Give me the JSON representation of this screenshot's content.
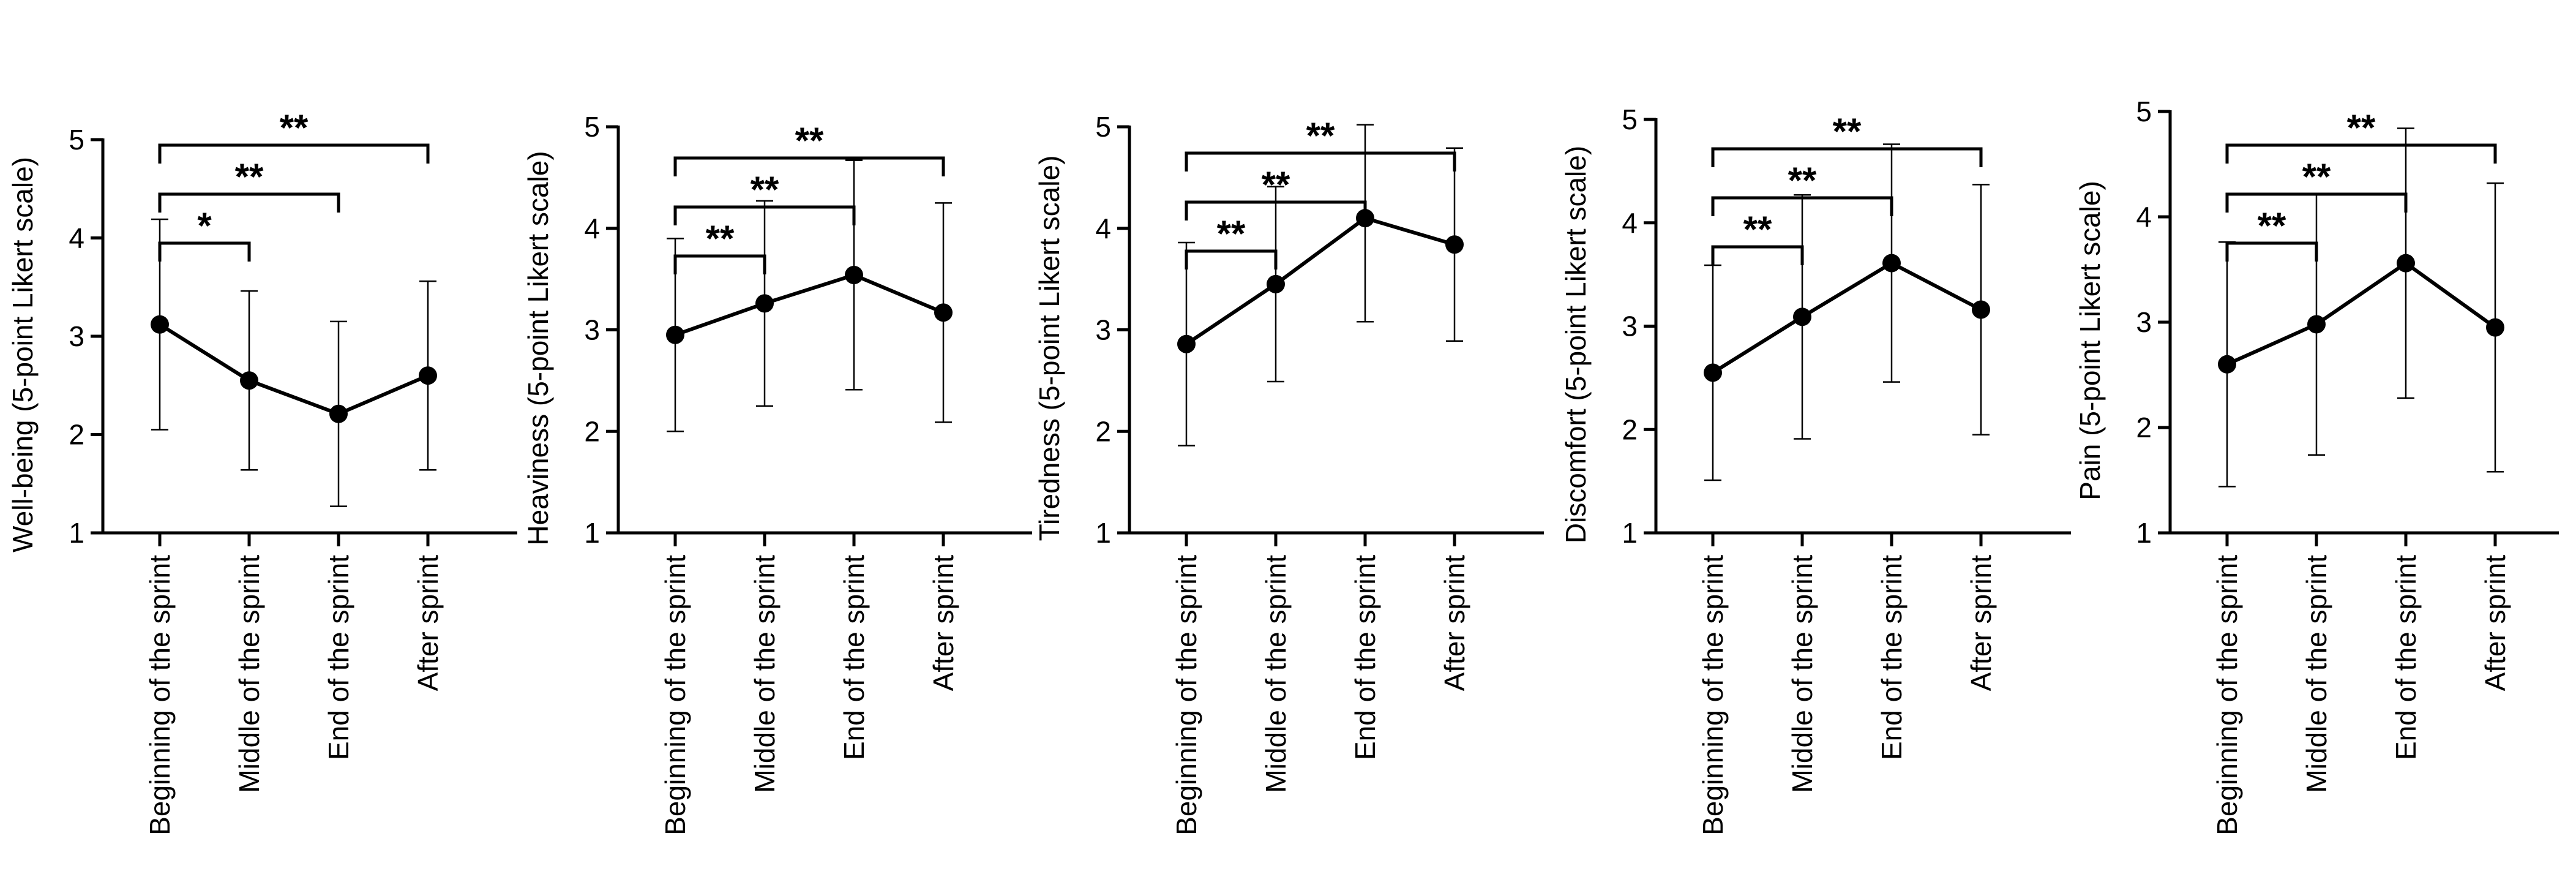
{
  "chart_data": [
    {
      "type": "line",
      "ylabel": "Well-being (5-point Likert scale)",
      "categories": [
        "Beginning of the sprint",
        "Middle of the sprint",
        "End of the sprint",
        "After sprint"
      ],
      "values": [
        3.12,
        2.55,
        2.21,
        2.6
      ],
      "errors": [
        1.07,
        0.91,
        0.94,
        0.96
      ],
      "ylim": [
        1,
        5
      ],
      "yticks": [
        "1",
        "2",
        "3",
        "4",
        "5"
      ],
      "significance": [
        {
          "from": 0,
          "to": 1,
          "label": "*"
        },
        {
          "from": 0,
          "to": 2,
          "label": "**"
        },
        {
          "from": 0,
          "to": 3,
          "label": "**"
        }
      ]
    },
    {
      "type": "line",
      "ylabel": "Heaviness (5-point Likert scale)",
      "categories": [
        "Beginning of the sprint",
        "Middle of the sprint",
        "End of the sprint",
        "After sprint"
      ],
      "values": [
        2.95,
        3.26,
        3.54,
        3.17
      ],
      "errors": [
        0.95,
        1.01,
        1.13,
        1.08
      ],
      "ylim": [
        1,
        5
      ],
      "yticks": [
        "1",
        "2",
        "3",
        "4",
        "5"
      ],
      "significance": [
        {
          "from": 0,
          "to": 1,
          "label": "**"
        },
        {
          "from": 0,
          "to": 2,
          "label": "**"
        },
        {
          "from": 0,
          "to": 3,
          "label": "**"
        }
      ]
    },
    {
      "type": "line",
      "ylabel": "Tiredness (5-point Likert scale)",
      "categories": [
        "Beginning of the sprint",
        "Middle of the sprint",
        "End of the sprint",
        "After sprint"
      ],
      "values": [
        2.86,
        3.45,
        4.1,
        3.84
      ],
      "errors": [
        1.0,
        0.96,
        1.02,
        0.95
      ],
      "ylim": [
        1,
        5
      ],
      "yticks": [
        "1",
        "2",
        "3",
        "4",
        "5"
      ],
      "significance": [
        {
          "from": 0,
          "to": 1,
          "label": "**"
        },
        {
          "from": 0,
          "to": 2,
          "label": "**"
        },
        {
          "from": 0,
          "to": 3,
          "label": "**"
        }
      ]
    },
    {
      "type": "line",
      "ylabel": "Discomfort (5-point Likert scale)",
      "categories": [
        "Beginning of the sprint",
        "Middle of the sprint",
        "End of the sprint",
        "After sprint"
      ],
      "values": [
        2.55,
        3.09,
        3.61,
        3.16
      ],
      "errors": [
        1.04,
        1.18,
        1.15,
        1.21
      ],
      "ylim": [
        1,
        5
      ],
      "yticks": [
        "1",
        "2",
        "3",
        "4",
        "5"
      ],
      "significance": [
        {
          "from": 0,
          "to": 1,
          "label": "**"
        },
        {
          "from": 0,
          "to": 2,
          "label": "**"
        },
        {
          "from": 0,
          "to": 3,
          "label": "**"
        }
      ]
    },
    {
      "type": "line",
      "ylabel": "Pain (5-point Likert scale)",
      "categories": [
        "Beginning of the sprint",
        "Middle of the sprint",
        "End of the sprint",
        "After sprint"
      ],
      "values": [
        2.6,
        2.98,
        3.56,
        2.95
      ],
      "errors": [
        1.16,
        1.24,
        1.28,
        1.37
      ],
      "ylim": [
        1,
        5
      ],
      "yticks": [
        "1",
        "2",
        "3",
        "4",
        "5"
      ],
      "significance": [
        {
          "from": 0,
          "to": 1,
          "label": "**"
        },
        {
          "from": 0,
          "to": 2,
          "label": "**"
        },
        {
          "from": 0,
          "to": 3,
          "label": "**"
        }
      ]
    }
  ]
}
